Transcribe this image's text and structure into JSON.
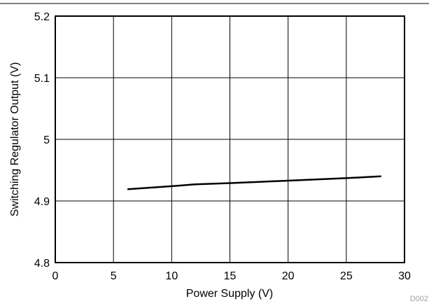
{
  "chart_data": {
    "type": "line",
    "title": "",
    "xlabel": "Power Supply (V)",
    "ylabel": "Switching Regulator Output (V)",
    "xlim": [
      0,
      30
    ],
    "ylim": [
      4.8,
      5.2
    ],
    "grid": true,
    "x_ticks": [
      0,
      5,
      10,
      15,
      20,
      25,
      30
    ],
    "x_tick_labels": [
      "0",
      "5",
      "10",
      "15",
      "20",
      "25",
      "30"
    ],
    "y_ticks": [
      4.8,
      4.9,
      5,
      5.1,
      5.2
    ],
    "y_tick_labels": [
      "4.8",
      "4.9",
      "5",
      "5.1",
      "5.2"
    ],
    "series": [
      {
        "color": "#000000",
        "x": [
          6.2,
          10,
          12,
          15,
          20,
          25,
          28
        ],
        "y": [
          4.919,
          4.924,
          4.927,
          4.929,
          4.933,
          4.937,
          4.94
        ]
      }
    ],
    "watermark": "D002"
  }
}
